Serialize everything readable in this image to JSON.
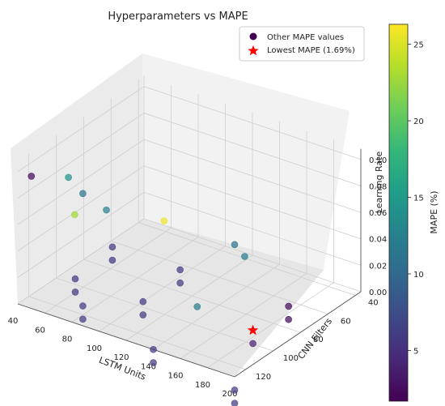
{
  "chart_data": {
    "type": "scatter",
    "title": "Hyperparameters vs MAPE",
    "xlabel": "LSTM Units",
    "ylabel": "CNN Filters",
    "zlabel": "Learning Rate",
    "x_ticks": [
      "40",
      "60",
      "80",
      "100",
      "120",
      "140",
      "160",
      "180",
      "200"
    ],
    "y_ticks": [
      "40",
      "60",
      "80",
      "100",
      "120"
    ],
    "z_ticks": [
      "0.00",
      "0.02",
      "0.04",
      "0.06",
      "0.08",
      "0.10"
    ],
    "colorbar": {
      "label": "MAPE (%)",
      "ticks": [
        "5",
        "10",
        "15",
        "20",
        "25"
      ],
      "range": [
        1.69,
        26.3
      ],
      "colormap": [
        "#440154",
        "#482878",
        "#3e4989",
        "#31688e",
        "#26828e",
        "#1f9e89",
        "#35b779",
        "#6ece58",
        "#b5de2b",
        "#fde725"
      ]
    },
    "legend": {
      "placement": "top-right",
      "entries": [
        "Other MAPE values",
        "Lowest MAPE (1.69%)"
      ]
    },
    "lowest": {
      "x": 175,
      "y": 90,
      "z": 0.0,
      "mape": 1.69
    },
    "series": [
      {
        "x": 50,
        "y": 128,
        "z": 0.1,
        "mape": 2.3
      },
      {
        "x": 45,
        "y": 96,
        "z": 0.075,
        "mape": 14.2
      },
      {
        "x": 82,
        "y": 128,
        "z": 0.082,
        "mape": 22.8
      },
      {
        "x": 73,
        "y": 96,
        "z": 0.06,
        "mape": 12.6
      },
      {
        "x": 88,
        "y": 128,
        "z": 0.1,
        "mape": 11.3
      },
      {
        "x": 148,
        "y": 128,
        "z": 0.1,
        "mape": 25.6
      },
      {
        "x": 200,
        "y": 128,
        "z": 0.1,
        "mape": 11.5
      },
      {
        "x": 175,
        "y": 96,
        "z": 0.06,
        "mape": 12.1
      },
      {
        "x": 140,
        "y": 96,
        "z": 0.01,
        "mape": 12.3
      },
      {
        "x": 88,
        "y": 128,
        "z": 0.015,
        "mape": 6.0
      },
      {
        "x": 88,
        "y": 128,
        "z": 0.005,
        "mape": 6.0
      },
      {
        "x": 140,
        "y": 128,
        "z": 0.0,
        "mape": 6.0
      },
      {
        "x": 140,
        "y": 128,
        "z": -0.01,
        "mape": 6.0
      },
      {
        "x": 200,
        "y": 128,
        "z": -0.01,
        "mape": 6.0
      },
      {
        "x": 200,
        "y": 128,
        "z": -0.02,
        "mape": 6.0
      },
      {
        "x": 50,
        "y": 96,
        "z": 0.0,
        "mape": 6.0
      },
      {
        "x": 50,
        "y": 96,
        "z": -0.01,
        "mape": 6.0
      },
      {
        "x": 100,
        "y": 96,
        "z": 0.0,
        "mape": 6.0
      },
      {
        "x": 100,
        "y": 96,
        "z": -0.01,
        "mape": 6.0
      },
      {
        "x": 45,
        "y": 64,
        "z": 0.0,
        "mape": 6.0
      },
      {
        "x": 45,
        "y": 64,
        "z": -0.01,
        "mape": 6.0
      },
      {
        "x": 95,
        "y": 64,
        "z": 0.0,
        "mape": 6.0
      },
      {
        "x": 95,
        "y": 64,
        "z": -0.01,
        "mape": 6.0
      },
      {
        "x": 175,
        "y": 64,
        "z": 0.0,
        "mape": 2.5
      },
      {
        "x": 175,
        "y": 64,
        "z": -0.01,
        "mape": 2.5
      },
      {
        "x": 175,
        "y": 90,
        "z": -0.01,
        "mape": 4.0
      }
    ]
  }
}
